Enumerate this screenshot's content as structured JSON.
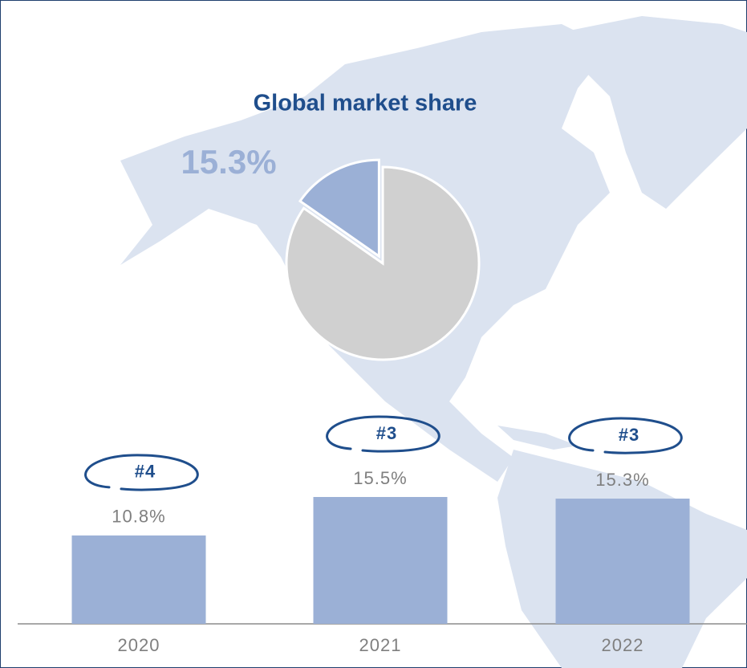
{
  "chart_data": [
    {
      "type": "pie",
      "title": "Global market share",
      "values": [
        15.3,
        84.7
      ],
      "value_labels": [
        "15.3%",
        null
      ],
      "colors": [
        "#9bb0d6",
        "#d0d0d0"
      ]
    },
    {
      "type": "bar",
      "categories": [
        "2020",
        "2021",
        "2022"
      ],
      "values": [
        10.8,
        15.5,
        15.3
      ],
      "value_labels": [
        "10.8%",
        "15.5%",
        "15.3%"
      ],
      "annotations": [
        "#4",
        "#3",
        "#3"
      ],
      "color": "#9bb0d6"
    }
  ]
}
